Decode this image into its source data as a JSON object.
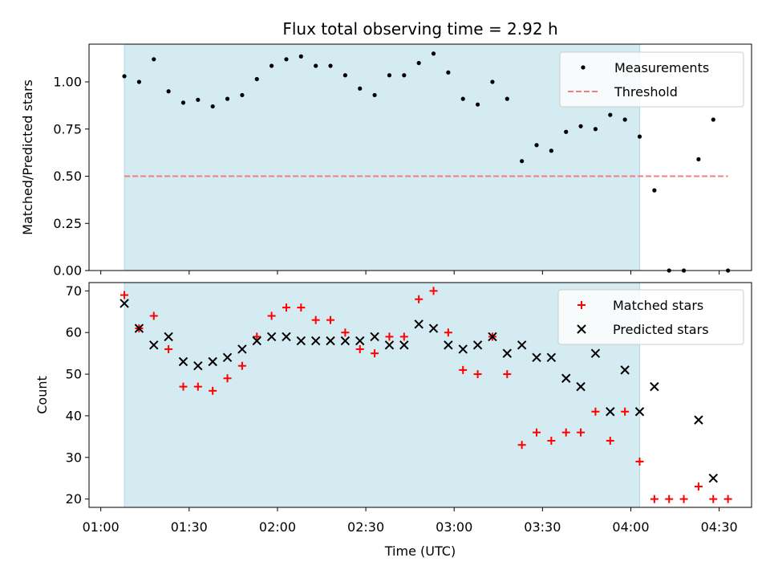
{
  "chart_data": [
    {
      "type": "scatter",
      "title": "Flux total observing time = 2.92 h",
      "xlabel": "",
      "ylabel": "Matched/Predicted stars",
      "ylim": [
        0,
        1.2
      ],
      "yticks": [
        0,
        0.25,
        0.5,
        0.75,
        1.0
      ],
      "ytick_labels": [
        "0.00",
        "0.25",
        "0.50",
        "0.75",
        "1.00"
      ],
      "legend_position": "top-right",
      "observing_window": {
        "start": "01:08",
        "end": "04:03",
        "color": "#d4ebf1"
      },
      "series": [
        {
          "name": "Measurements",
          "color": "#000000",
          "marker": "dot",
          "x": [
            "01:08",
            "01:13",
            "01:18",
            "01:23",
            "01:28",
            "01:33",
            "01:38",
            "01:43",
            "01:48",
            "01:53",
            "01:58",
            "02:03",
            "02:08",
            "02:13",
            "02:18",
            "02:23",
            "02:28",
            "02:33",
            "02:38",
            "02:43",
            "02:48",
            "02:53",
            "02:58",
            "03:03",
            "03:08",
            "03:13",
            "03:18",
            "03:23",
            "03:28",
            "03:33",
            "03:38",
            "03:43",
            "03:48",
            "03:53",
            "03:58",
            "04:03",
            "04:08",
            "04:13",
            "04:18",
            "04:23",
            "04:28",
            "04:33"
          ],
          "y": [
            1.03,
            1.0,
            1.12,
            0.95,
            0.89,
            0.905,
            0.87,
            0.91,
            0.93,
            1.015,
            1.085,
            1.12,
            1.135,
            1.085,
            1.085,
            1.035,
            0.965,
            0.93,
            1.035,
            1.035,
            1.1,
            1.15,
            1.05,
            0.91,
            0.88,
            1.0,
            0.91,
            0.58,
            0.665,
            0.635,
            0.735,
            0.765,
            0.75,
            0.825,
            0.8,
            0.71,
            0.425,
            0.0,
            0.0,
            0.59,
            0.8,
            0.0
          ]
        },
        {
          "name": "Threshold",
          "color": "#f08080",
          "style": "dashed",
          "x": [
            "01:08",
            "04:33"
          ],
          "y": [
            0.5,
            0.5
          ]
        }
      ]
    },
    {
      "type": "scatter",
      "title": "",
      "xlabel": "Time (UTC)",
      "ylabel": "Count",
      "ylim": [
        18,
        72
      ],
      "yticks": [
        20,
        30,
        40,
        50,
        60,
        70
      ],
      "ytick_labels": [
        "20",
        "30",
        "40",
        "50",
        "60",
        "70"
      ],
      "xticks": [
        "01:00",
        "01:30",
        "02:00",
        "02:30",
        "03:00",
        "03:30",
        "04:00",
        "04:30"
      ],
      "xlim": [
        "00:56",
        "04:41"
      ],
      "legend_position": "top-right",
      "observing_window": {
        "start": "01:08",
        "end": "04:03",
        "color": "#d4ebf1"
      },
      "series": [
        {
          "name": "Matched stars",
          "color": "#ff0000",
          "marker": "plus",
          "x": [
            "01:08",
            "01:13",
            "01:18",
            "01:23",
            "01:28",
            "01:33",
            "01:38",
            "01:43",
            "01:48",
            "01:53",
            "01:58",
            "02:03",
            "02:08",
            "02:13",
            "02:18",
            "02:23",
            "02:28",
            "02:33",
            "02:38",
            "02:43",
            "02:48",
            "02:53",
            "02:58",
            "03:03",
            "03:08",
            "03:13",
            "03:18",
            "03:23",
            "03:28",
            "03:33",
            "03:38",
            "03:43",
            "03:48",
            "03:53",
            "03:58",
            "04:03",
            "04:08",
            "04:13",
            "04:18",
            "04:23",
            "04:28",
            "04:33"
          ],
          "y": [
            69,
            61,
            64,
            56,
            47,
            47,
            46,
            49,
            52,
            59,
            64,
            66,
            66,
            63,
            63,
            60,
            56,
            55,
            59,
            59,
            68,
            70,
            60,
            51,
            50,
            59,
            50,
            33,
            36,
            34,
            36,
            36,
            41,
            34,
            41,
            29,
            20,
            20,
            20,
            23,
            20,
            20
          ]
        },
        {
          "name": "Predicted stars",
          "color": "#000000",
          "marker": "x",
          "x": [
            "01:08",
            "01:13",
            "01:18",
            "01:23",
            "01:28",
            "01:33",
            "01:38",
            "01:43",
            "01:48",
            "01:53",
            "01:58",
            "02:03",
            "02:08",
            "02:13",
            "02:18",
            "02:23",
            "02:28",
            "02:33",
            "02:38",
            "02:43",
            "02:48",
            "02:53",
            "02:58",
            "03:03",
            "03:08",
            "03:13",
            "03:18",
            "03:23",
            "03:28",
            "03:33",
            "03:38",
            "03:43",
            "03:48",
            "03:53",
            "03:58",
            "04:03",
            "04:08",
            "04:23",
            "04:28"
          ],
          "y": [
            67,
            61,
            57,
            59,
            53,
            52,
            53,
            54,
            56,
            58,
            59,
            59,
            58,
            58,
            58,
            58,
            58,
            59,
            57,
            57,
            62,
            61,
            57,
            56,
            57,
            59,
            55,
            57,
            54,
            54,
            49,
            47,
            55,
            41,
            51,
            41,
            47,
            39,
            25
          ]
        }
      ]
    }
  ]
}
